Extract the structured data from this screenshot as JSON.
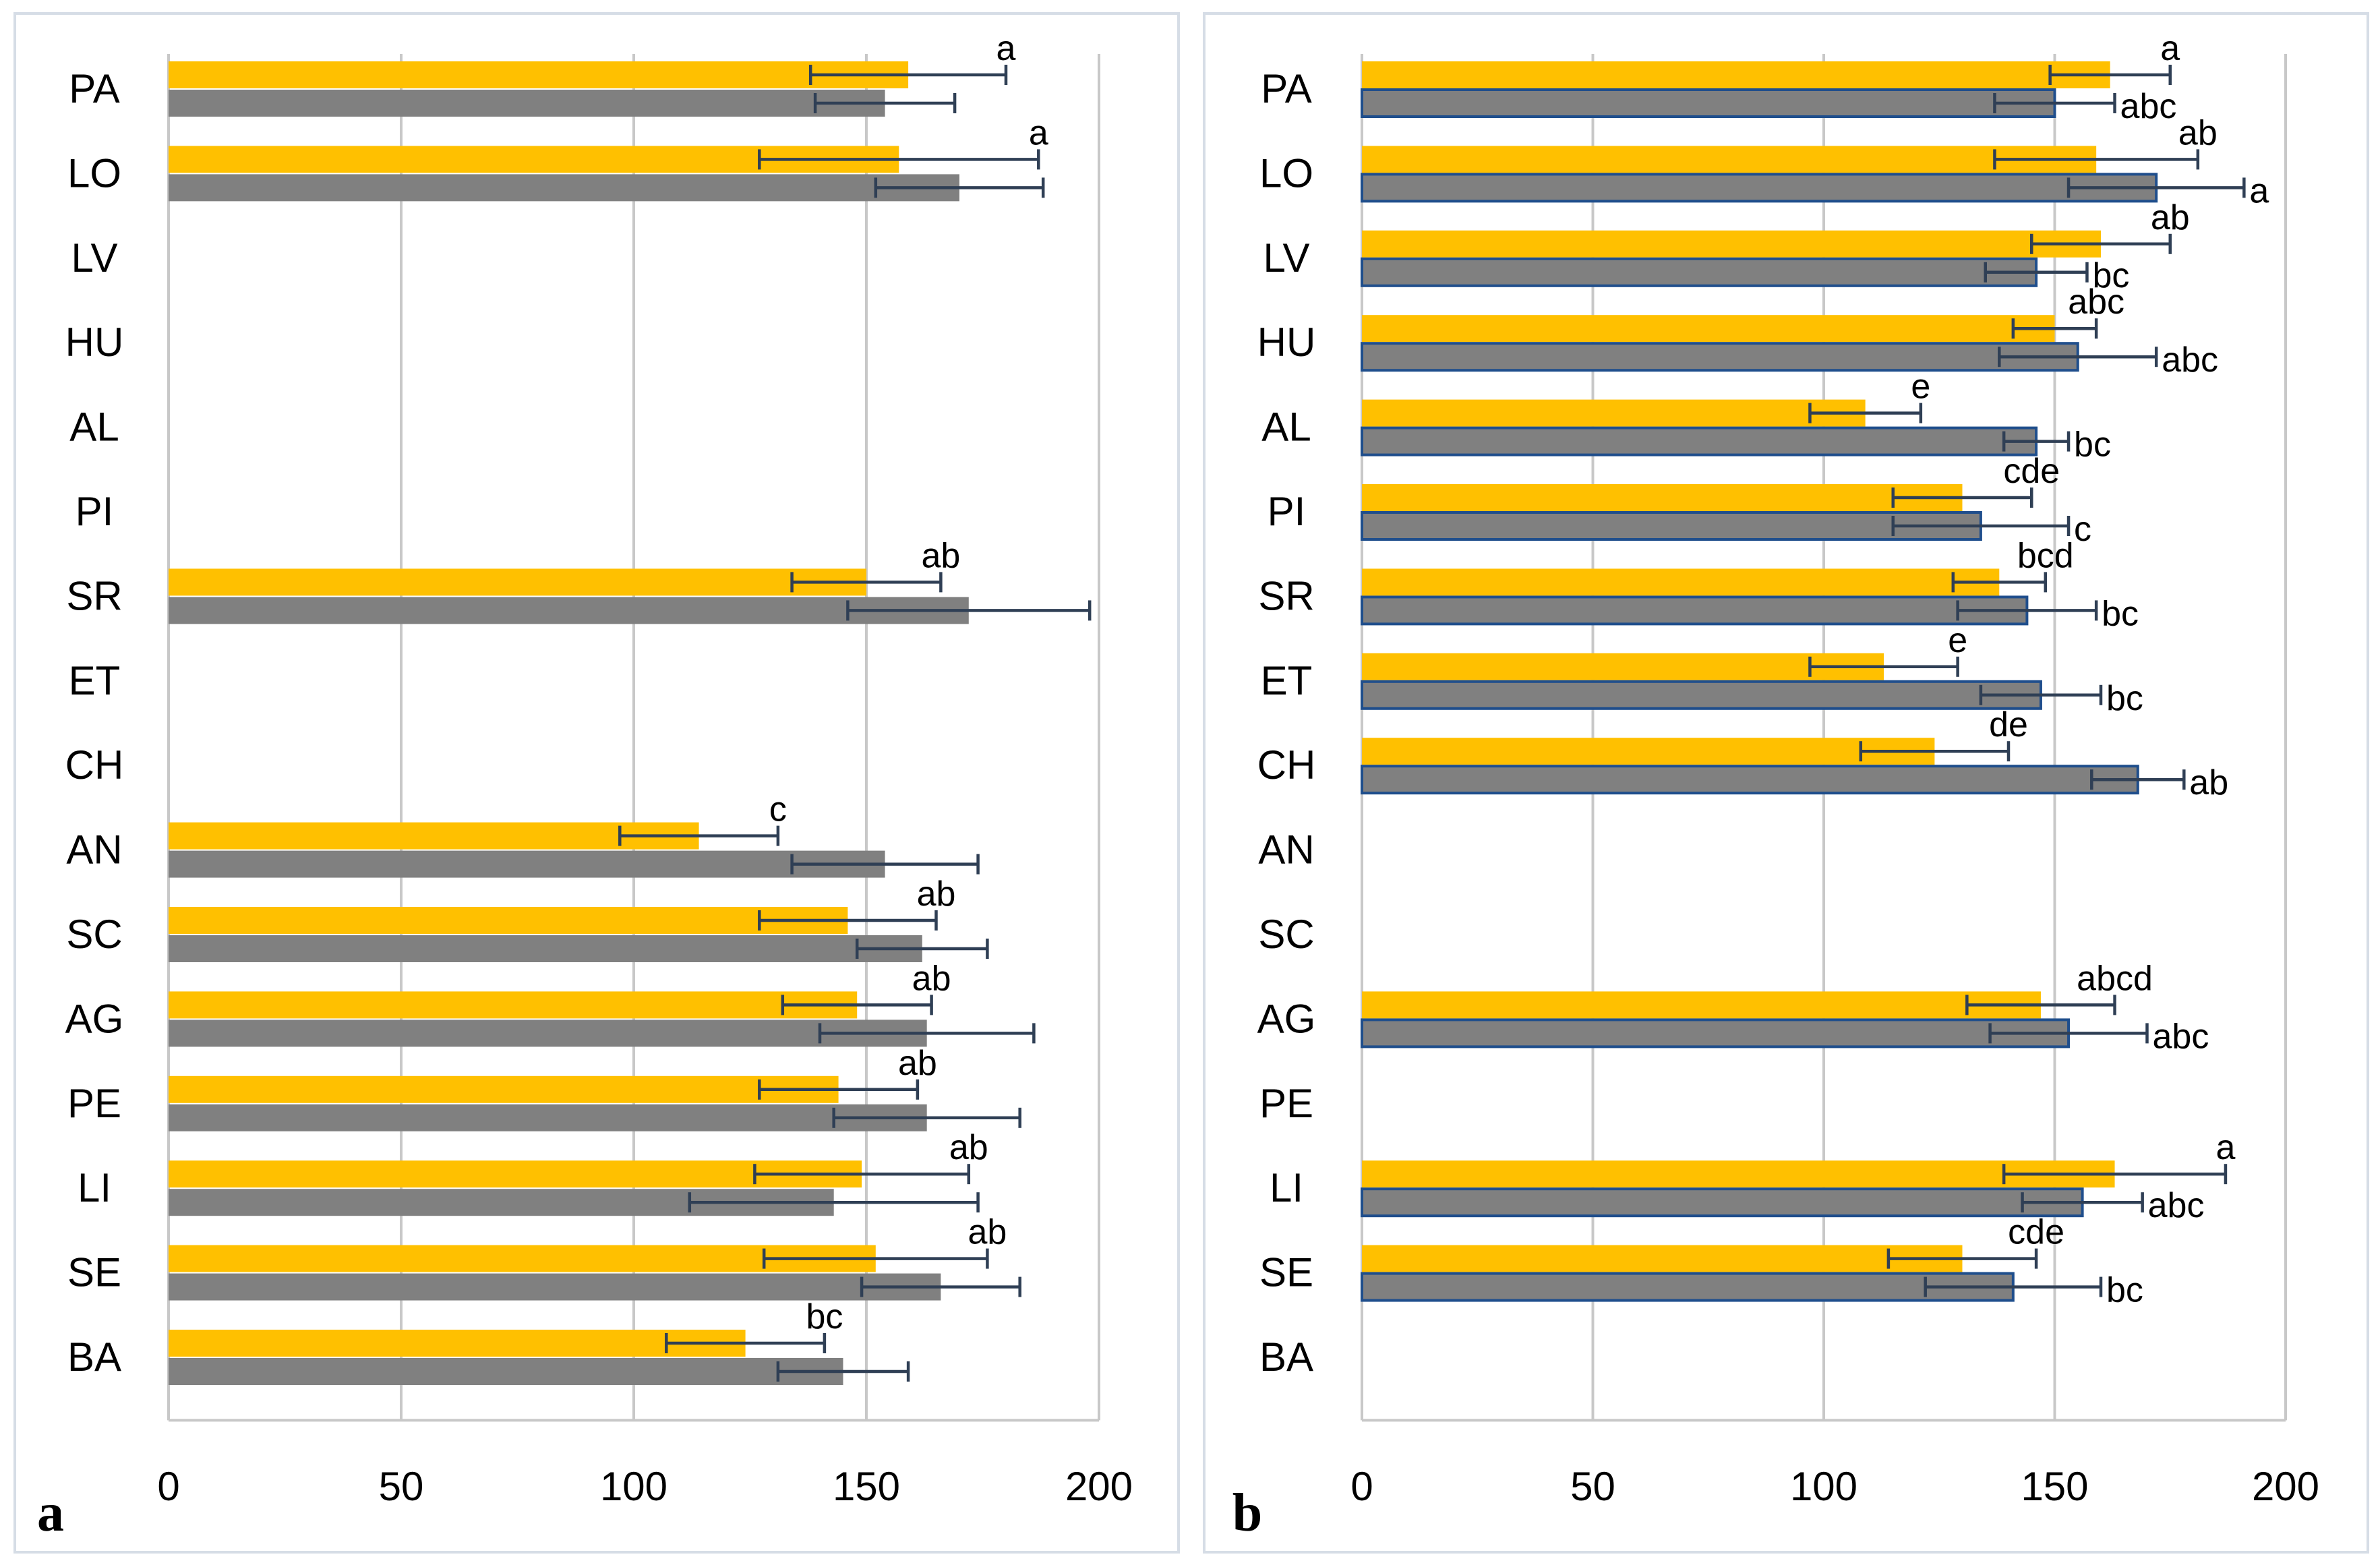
{
  "colors": {
    "series_1": "#ffc000",
    "series_2": "#808080",
    "panel_b_series_2_outline": "#1f4e8c"
  },
  "chart_data": [
    {
      "type": "bar",
      "orientation": "horizontal",
      "panel_label": "a",
      "categories": [
        "PA",
        "LO",
        "LV",
        "HU",
        "AL",
        "PI",
        "SR",
        "ET",
        "CH",
        "AN",
        "SC",
        "AG",
        "PE",
        "LI",
        "SE",
        "BA"
      ],
      "xlim": [
        0,
        200
      ],
      "xticks": [
        "0",
        "50",
        "100",
        "150",
        "200"
      ],
      "grid": true,
      "series": [
        {
          "name": "series 1 (yellow)",
          "values": [
            159,
            157,
            null,
            null,
            null,
            null,
            150,
            null,
            null,
            114,
            146,
            148,
            144,
            149,
            152,
            124
          ],
          "errors": [
            21,
            30,
            null,
            null,
            null,
            null,
            16,
            null,
            null,
            17,
            19,
            16,
            17,
            23,
            24,
            17
          ]
        },
        {
          "name": "series 2 (grey)",
          "values": [
            154,
            170,
            null,
            null,
            null,
            null,
            172,
            null,
            null,
            154,
            162,
            163,
            163,
            143,
            166,
            145
          ],
          "errors": [
            15,
            18,
            null,
            null,
            null,
            null,
            26,
            null,
            null,
            20,
            14,
            23,
            20,
            31,
            17,
            14
          ]
        }
      ],
      "significance_labels": [
        {
          "category": "PA",
          "series": 0,
          "text": "a"
        },
        {
          "category": "LO",
          "series": 0,
          "text": "a"
        },
        {
          "category": "SR",
          "series": 0,
          "text": "ab"
        },
        {
          "category": "AN",
          "series": 0,
          "text": "c"
        },
        {
          "category": "SC",
          "series": 0,
          "text": "ab"
        },
        {
          "category": "AG",
          "series": 0,
          "text": "ab"
        },
        {
          "category": "PE",
          "series": 0,
          "text": "ab"
        },
        {
          "category": "LI",
          "series": 0,
          "text": "ab"
        },
        {
          "category": "SE",
          "series": 0,
          "text": "ab"
        },
        {
          "category": "BA",
          "series": 0,
          "text": "bc"
        }
      ]
    },
    {
      "type": "bar",
      "orientation": "horizontal",
      "panel_label": "b",
      "categories": [
        "PA",
        "LO",
        "LV",
        "HU",
        "AL",
        "PI",
        "SR",
        "ET",
        "CH",
        "AN",
        "SC",
        "AG",
        "PE",
        "LI",
        "SE",
        "BA"
      ],
      "xlim": [
        0,
        200
      ],
      "xticks": [
        "0",
        "50",
        "100",
        "150",
        "200"
      ],
      "grid": true,
      "series": [
        {
          "name": "series 1 (yellow)",
          "values": [
            162,
            159,
            160,
            150,
            109,
            130,
            138,
            113,
            124,
            null,
            null,
            147,
            null,
            163,
            130,
            null
          ],
          "errors": [
            13,
            22,
            15,
            9,
            12,
            15,
            10,
            16,
            16,
            null,
            null,
            16,
            null,
            24,
            16,
            null
          ]
        },
        {
          "name": "series 2 (grey)",
          "values": [
            150,
            172,
            146,
            155,
            146,
            134,
            144,
            147,
            168,
            null,
            null,
            153,
            null,
            156,
            141,
            null
          ],
          "errors": [
            13,
            19,
            11,
            17,
            7,
            19,
            15,
            13,
            10,
            null,
            null,
            17,
            null,
            13,
            19,
            null
          ]
        }
      ],
      "significance_labels": [
        {
          "category": "PA",
          "series": 0,
          "text": "a"
        },
        {
          "category": "PA",
          "series": 1,
          "text": "abc"
        },
        {
          "category": "LO",
          "series": 0,
          "text": "ab"
        },
        {
          "category": "LO",
          "series": 1,
          "text": "a"
        },
        {
          "category": "LV",
          "series": 0,
          "text": "ab"
        },
        {
          "category": "LV",
          "series": 1,
          "text": "bc"
        },
        {
          "category": "HU",
          "series": 0,
          "text": "abc"
        },
        {
          "category": "HU",
          "series": 1,
          "text": "abc"
        },
        {
          "category": "AL",
          "series": 0,
          "text": "e"
        },
        {
          "category": "AL",
          "series": 1,
          "text": "bc"
        },
        {
          "category": "PI",
          "series": 0,
          "text": "cde"
        },
        {
          "category": "PI",
          "series": 1,
          "text": "c"
        },
        {
          "category": "SR",
          "series": 0,
          "text": "bcd"
        },
        {
          "category": "SR",
          "series": 1,
          "text": "bc"
        },
        {
          "category": "ET",
          "series": 0,
          "text": "e"
        },
        {
          "category": "ET",
          "series": 1,
          "text": "bc"
        },
        {
          "category": "CH",
          "series": 0,
          "text": "de"
        },
        {
          "category": "CH",
          "series": 1,
          "text": "ab"
        },
        {
          "category": "AG",
          "series": 0,
          "text": "abcd"
        },
        {
          "category": "AG",
          "series": 1,
          "text": "abc"
        },
        {
          "category": "LI",
          "series": 0,
          "text": "a"
        },
        {
          "category": "LI",
          "series": 1,
          "text": "abc"
        },
        {
          "category": "SE",
          "series": 0,
          "text": "cde"
        },
        {
          "category": "SE",
          "series": 1,
          "text": "bc"
        }
      ]
    }
  ]
}
